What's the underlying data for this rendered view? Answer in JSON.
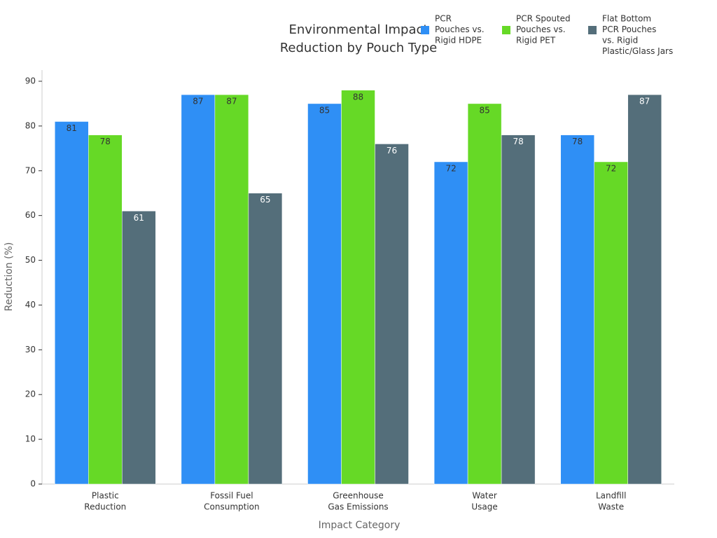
{
  "chart_data": {
    "type": "bar",
    "title": [
      "Environmental Impact",
      "Reduction by Pouch Type"
    ],
    "x_label": "Impact Category",
    "y_label": "Reduction (%)",
    "categories": [
      [
        "Plastic",
        "Reduction"
      ],
      [
        "Fossil Fuel",
        "Consumption"
      ],
      [
        "Greenhouse",
        "Gas Emissions"
      ],
      [
        "Water",
        "Usage"
      ],
      [
        "Landfill",
        "Waste"
      ]
    ],
    "series": [
      {
        "name": [
          "PCR",
          "Pouches vs.",
          "Rigid HDPE"
        ],
        "color": "#2f8ff5",
        "label_color": "#333333",
        "values": [
          81,
          87,
          85,
          72,
          78
        ]
      },
      {
        "name": [
          "PCR Spouted",
          "Pouches vs.",
          "Rigid PET"
        ],
        "color": "#66d926",
        "label_color": "#333333",
        "values": [
          78,
          87,
          88,
          85,
          72
        ]
      },
      {
        "name": [
          "Flat Bottom",
          "PCR Pouches",
          "vs. Rigid",
          "Plastic/Glass Jars"
        ],
        "color": "#546e7a",
        "label_color": "#ffffff",
        "values": [
          61,
          65,
          76,
          78,
          87
        ]
      }
    ],
    "ylim": [
      0,
      92.5
    ],
    "yticks": [
      0,
      10,
      20,
      30,
      40,
      50,
      60,
      70,
      80,
      90
    ],
    "grid": false,
    "legend": "top-right"
  }
}
